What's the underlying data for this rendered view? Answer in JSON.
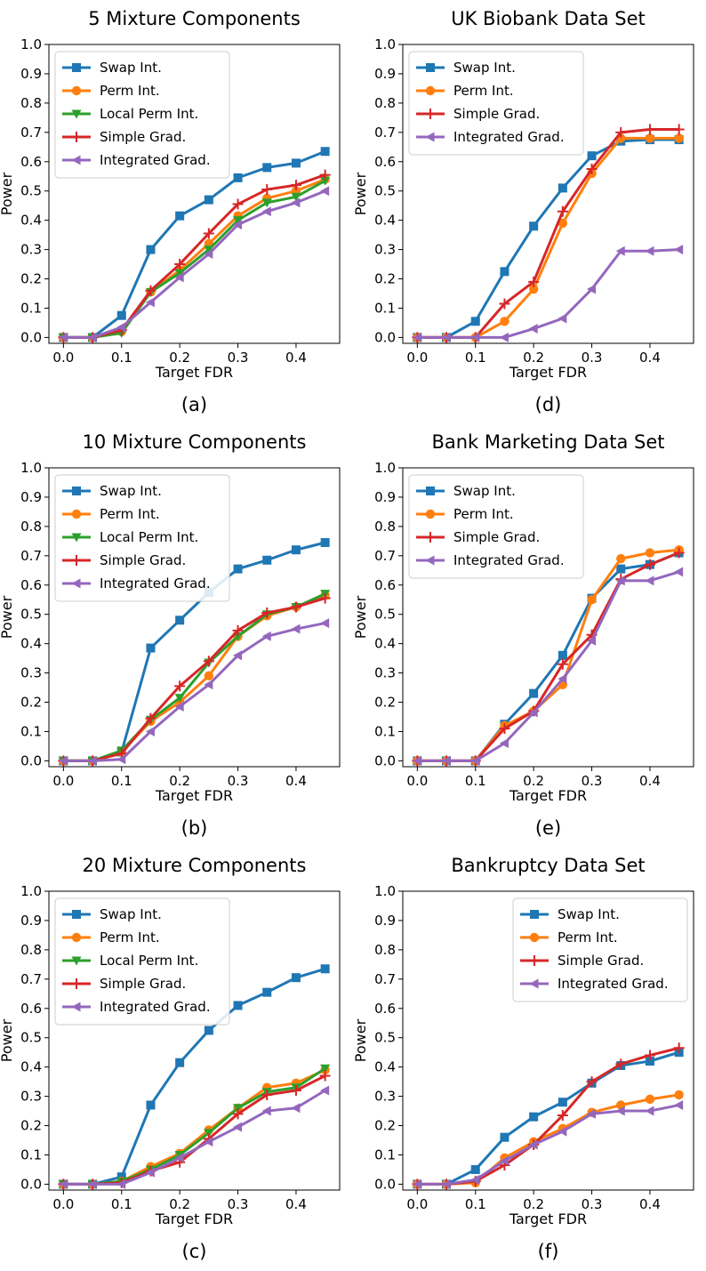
{
  "chart_data": [
    {
      "type": "line",
      "title": "5 Mixture Components",
      "caption": "(a)",
      "xlabel": "Target FDR",
      "ylabel": "Power",
      "xlim": [
        -0.025,
        0.475
      ],
      "ylim": [
        -0.02,
        1.0
      ],
      "xticks": [
        "0.0",
        "0.1",
        "0.2",
        "0.3",
        "0.4"
      ],
      "yticks": [
        "0.0",
        "0.1",
        "0.2",
        "0.3",
        "0.4",
        "0.5",
        "0.6",
        "0.7",
        "0.8",
        "0.9",
        "1.0"
      ],
      "legend": "top-left",
      "x": [
        0.0,
        0.05,
        0.1,
        0.15,
        0.2,
        0.25,
        0.3,
        0.35,
        0.4,
        0.45
      ],
      "series": [
        {
          "name": "Swap Int.",
          "color": "#1f77b4",
          "marker": "square",
          "values": [
            0.0,
            0.0,
            0.075,
            0.3,
            0.415,
            0.47,
            0.545,
            0.58,
            0.595,
            0.635
          ]
        },
        {
          "name": "Perm Int.",
          "color": "#ff7f0e",
          "marker": "circle",
          "values": [
            0.0,
            0.0,
            0.02,
            0.155,
            0.23,
            0.32,
            0.415,
            0.475,
            0.5,
            0.54
          ]
        },
        {
          "name": "Local Perm Int.",
          "color": "#2ca02c",
          "marker": "triangle-down",
          "values": [
            0.0,
            0.0,
            0.015,
            0.155,
            0.22,
            0.3,
            0.4,
            0.46,
            0.48,
            0.535
          ]
        },
        {
          "name": "Simple Grad.",
          "color": "#d62728",
          "marker": "plus",
          "values": [
            0.0,
            0.0,
            0.025,
            0.16,
            0.25,
            0.355,
            0.455,
            0.505,
            0.52,
            0.555
          ]
        },
        {
          "name": "Integrated Grad.",
          "color": "#9467bd",
          "marker": "triangle-left",
          "values": [
            0.0,
            0.0,
            0.035,
            0.12,
            0.205,
            0.285,
            0.385,
            0.43,
            0.46,
            0.5
          ]
        }
      ]
    },
    {
      "type": "line",
      "title": "UK Biobank Data Set",
      "caption": "(d)",
      "xlabel": "Target FDR",
      "ylabel": "Power",
      "xlim": [
        -0.025,
        0.475
      ],
      "ylim": [
        -0.02,
        1.0
      ],
      "xticks": [
        "0.0",
        "0.1",
        "0.2",
        "0.3",
        "0.4"
      ],
      "yticks": [
        "0.0",
        "0.1",
        "0.2",
        "0.3",
        "0.4",
        "0.5",
        "0.6",
        "0.7",
        "0.8",
        "0.9",
        "1.0"
      ],
      "legend": "top-left",
      "x": [
        0.0,
        0.05,
        0.1,
        0.15,
        0.2,
        0.25,
        0.3,
        0.35,
        0.4,
        0.45
      ],
      "series": [
        {
          "name": "Swap Int.",
          "color": "#1f77b4",
          "marker": "square",
          "values": [
            0.0,
            0.0,
            0.055,
            0.225,
            0.38,
            0.51,
            0.62,
            0.67,
            0.675,
            0.675
          ]
        },
        {
          "name": "Perm Int.",
          "color": "#ff7f0e",
          "marker": "circle",
          "values": [
            0.0,
            0.0,
            0.0,
            0.055,
            0.165,
            0.39,
            0.56,
            0.68,
            0.68,
            0.68
          ]
        },
        {
          "name": "Simple Grad.",
          "color": "#d62728",
          "marker": "plus",
          "values": [
            0.0,
            0.0,
            0.0,
            0.115,
            0.19,
            0.43,
            0.575,
            0.7,
            0.71,
            0.71
          ]
        },
        {
          "name": "Integrated Grad.",
          "color": "#9467bd",
          "marker": "triangle-left",
          "values": [
            0.0,
            0.0,
            0.0,
            0.0,
            0.03,
            0.065,
            0.165,
            0.295,
            0.295,
            0.3
          ]
        }
      ]
    },
    {
      "type": "line",
      "title": "10 Mixture Components",
      "caption": "(b)",
      "xlabel": "Target FDR",
      "ylabel": "Power",
      "xlim": [
        -0.025,
        0.475
      ],
      "ylim": [
        -0.02,
        1.0
      ],
      "xticks": [
        "0.0",
        "0.1",
        "0.2",
        "0.3",
        "0.4"
      ],
      "yticks": [
        "0.0",
        "0.1",
        "0.2",
        "0.3",
        "0.4",
        "0.5",
        "0.6",
        "0.7",
        "0.8",
        "0.9",
        "1.0"
      ],
      "legend": "top-left",
      "x": [
        0.0,
        0.05,
        0.1,
        0.15,
        0.2,
        0.25,
        0.3,
        0.35,
        0.4,
        0.45
      ],
      "series": [
        {
          "name": "Swap Int.",
          "color": "#1f77b4",
          "marker": "square",
          "values": [
            0.0,
            0.0,
            0.03,
            0.385,
            0.48,
            0.575,
            0.655,
            0.685,
            0.72,
            0.745
          ]
        },
        {
          "name": "Perm Int.",
          "color": "#ff7f0e",
          "marker": "circle",
          "values": [
            0.0,
            0.0,
            0.03,
            0.135,
            0.2,
            0.29,
            0.425,
            0.495,
            0.525,
            0.565
          ]
        },
        {
          "name": "Local Perm Int.",
          "color": "#2ca02c",
          "marker": "triangle-down",
          "values": [
            0.0,
            0.0,
            0.035,
            0.14,
            0.215,
            0.335,
            0.425,
            0.5,
            0.525,
            0.57
          ]
        },
        {
          "name": "Simple Grad.",
          "color": "#d62728",
          "marker": "plus",
          "values": [
            0.0,
            0.0,
            0.025,
            0.145,
            0.255,
            0.34,
            0.445,
            0.505,
            0.525,
            0.555
          ]
        },
        {
          "name": "Integrated Grad.",
          "color": "#9467bd",
          "marker": "triangle-left",
          "values": [
            0.0,
            0.0,
            0.005,
            0.1,
            0.185,
            0.26,
            0.36,
            0.425,
            0.45,
            0.47
          ]
        }
      ]
    },
    {
      "type": "line",
      "title": "Bank Marketing Data Set",
      "caption": "(e)",
      "xlabel": "Target FDR",
      "ylabel": "Power",
      "xlim": [
        -0.025,
        0.475
      ],
      "ylim": [
        -0.02,
        1.0
      ],
      "xticks": [
        "0.0",
        "0.1",
        "0.2",
        "0.3",
        "0.4"
      ],
      "yticks": [
        "0.0",
        "0.1",
        "0.2",
        "0.3",
        "0.4",
        "0.5",
        "0.6",
        "0.7",
        "0.8",
        "0.9",
        "1.0"
      ],
      "legend": "top-left",
      "x": [
        0.0,
        0.05,
        0.1,
        0.15,
        0.2,
        0.25,
        0.3,
        0.35,
        0.4,
        0.45
      ],
      "series": [
        {
          "name": "Swap Int.",
          "color": "#1f77b4",
          "marker": "square",
          "values": [
            0.0,
            0.0,
            0.0,
            0.125,
            0.23,
            0.36,
            0.555,
            0.655,
            0.67,
            0.71
          ]
        },
        {
          "name": "Perm Int.",
          "color": "#ff7f0e",
          "marker": "circle",
          "values": [
            0.0,
            0.0,
            0.0,
            0.12,
            0.17,
            0.26,
            0.55,
            0.69,
            0.71,
            0.72
          ]
        },
        {
          "name": "Simple Grad.",
          "color": "#d62728",
          "marker": "plus",
          "values": [
            0.0,
            0.0,
            0.0,
            0.11,
            0.17,
            0.33,
            0.43,
            0.62,
            0.67,
            0.71
          ]
        },
        {
          "name": "Integrated Grad.",
          "color": "#9467bd",
          "marker": "triangle-left",
          "values": [
            0.0,
            0.0,
            0.0,
            0.06,
            0.165,
            0.28,
            0.41,
            0.615,
            0.615,
            0.645
          ]
        }
      ]
    },
    {
      "type": "line",
      "title": "20 Mixture Components",
      "caption": "(c)",
      "xlabel": "Target FDR",
      "ylabel": "Power",
      "xlim": [
        -0.025,
        0.475
      ],
      "ylim": [
        -0.02,
        1.0
      ],
      "xticks": [
        "0.0",
        "0.1",
        "0.2",
        "0.3",
        "0.4"
      ],
      "yticks": [
        "0.0",
        "0.1",
        "0.2",
        "0.3",
        "0.4",
        "0.5",
        "0.6",
        "0.7",
        "0.8",
        "0.9",
        "1.0"
      ],
      "legend": "top-left",
      "x": [
        0.0,
        0.05,
        0.1,
        0.15,
        0.2,
        0.25,
        0.3,
        0.35,
        0.4,
        0.45
      ],
      "series": [
        {
          "name": "Swap Int.",
          "color": "#1f77b4",
          "marker": "square",
          "values": [
            0.0,
            0.0,
            0.025,
            0.27,
            0.415,
            0.525,
            0.61,
            0.655,
            0.705,
            0.735
          ]
        },
        {
          "name": "Perm Int.",
          "color": "#ff7f0e",
          "marker": "circle",
          "values": [
            0.0,
            0.0,
            0.01,
            0.06,
            0.105,
            0.185,
            0.26,
            0.33,
            0.345,
            0.39
          ]
        },
        {
          "name": "Local Perm Int.",
          "color": "#2ca02c",
          "marker": "triangle-down",
          "values": [
            0.0,
            0.0,
            0.01,
            0.05,
            0.1,
            0.175,
            0.26,
            0.315,
            0.33,
            0.395
          ]
        },
        {
          "name": "Simple Grad.",
          "color": "#d62728",
          "marker": "plus",
          "values": [
            0.0,
            0.0,
            0.005,
            0.045,
            0.075,
            0.155,
            0.24,
            0.305,
            0.32,
            0.37
          ]
        },
        {
          "name": "Integrated Grad.",
          "color": "#9467bd",
          "marker": "triangle-left",
          "values": [
            0.0,
            0.0,
            0.0,
            0.04,
            0.09,
            0.145,
            0.195,
            0.25,
            0.26,
            0.32
          ]
        }
      ]
    },
    {
      "type": "line",
      "title": "Bankruptcy Data Set",
      "caption": "(f)",
      "xlabel": "Target FDR",
      "ylabel": "Power",
      "xlim": [
        -0.025,
        0.475
      ],
      "ylim": [
        -0.02,
        1.0
      ],
      "xticks": [
        "0.0",
        "0.1",
        "0.2",
        "0.3",
        "0.4"
      ],
      "yticks": [
        "0.0",
        "0.1",
        "0.2",
        "0.3",
        "0.4",
        "0.5",
        "0.6",
        "0.7",
        "0.8",
        "0.9",
        "1.0"
      ],
      "legend": "top-right",
      "x": [
        0.0,
        0.05,
        0.1,
        0.15,
        0.2,
        0.25,
        0.3,
        0.35,
        0.4,
        0.45
      ],
      "series": [
        {
          "name": "Swap Int.",
          "color": "#1f77b4",
          "marker": "square",
          "values": [
            0.0,
            0.0,
            0.05,
            0.16,
            0.23,
            0.28,
            0.345,
            0.405,
            0.42,
            0.45
          ]
        },
        {
          "name": "Perm Int.",
          "color": "#ff7f0e",
          "marker": "circle",
          "values": [
            0.0,
            0.0,
            0.005,
            0.09,
            0.145,
            0.19,
            0.245,
            0.27,
            0.29,
            0.305
          ]
        },
        {
          "name": "Simple Grad.",
          "color": "#d62728",
          "marker": "plus",
          "values": [
            0.0,
            0.0,
            0.01,
            0.065,
            0.135,
            0.235,
            0.35,
            0.41,
            0.44,
            0.465
          ]
        },
        {
          "name": "Integrated Grad.",
          "color": "#9467bd",
          "marker": "triangle-left",
          "values": [
            0.0,
            0.0,
            0.015,
            0.08,
            0.135,
            0.18,
            0.24,
            0.25,
            0.25,
            0.27
          ]
        }
      ]
    }
  ]
}
